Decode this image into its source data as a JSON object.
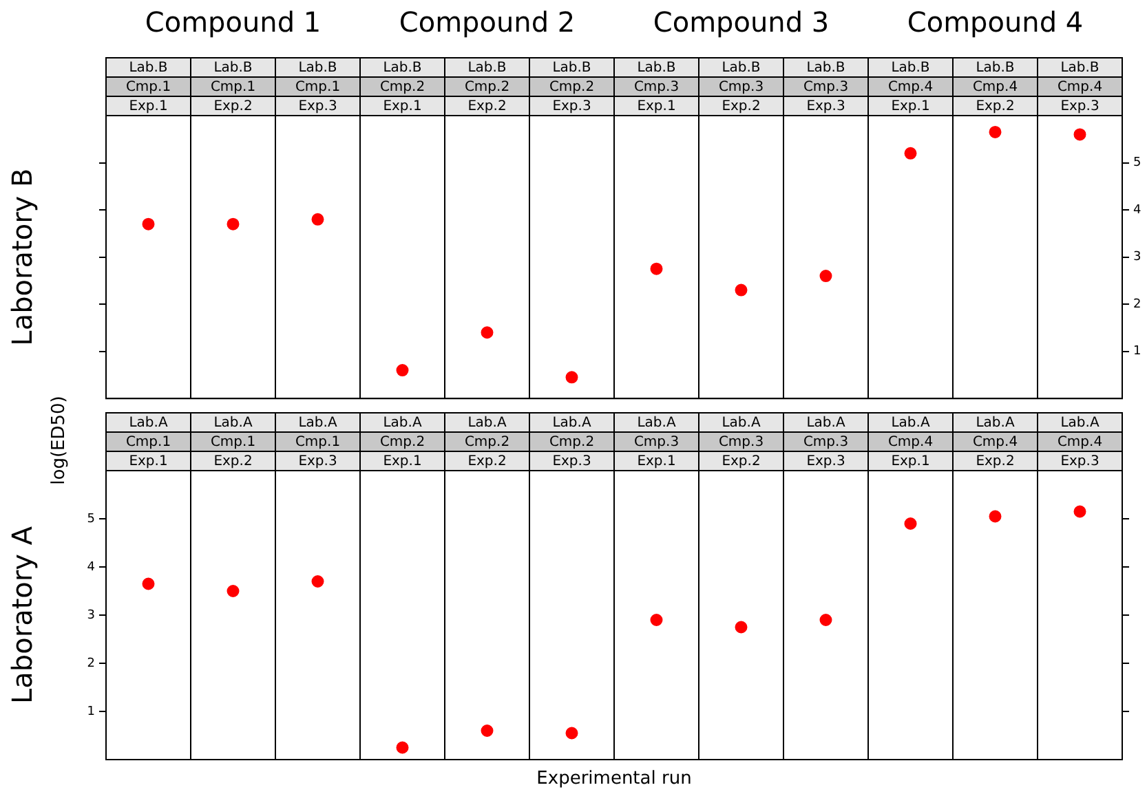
{
  "chart_data": [
    {
      "type": "scatter",
      "ylabel": "Laboratory B",
      "categories": [
        "Exp.1",
        "Exp.2",
        "Exp.3",
        "Exp.1",
        "Exp.2",
        "Exp.3",
        "Exp.1",
        "Exp.2",
        "Exp.3",
        "Exp.1",
        "Exp.2",
        "Exp.3"
      ],
      "annotations": [
        "Compound 1",
        "Compound 2",
        "Compound 3",
        "Compound 4",
        "Lab.B",
        "Lab.B",
        "Lab.B",
        "Lab.B",
        "Lab.B",
        "Lab.B",
        "Lab.B",
        "Lab.B",
        "Lab.B",
        "Lab.B",
        "Lab.B",
        "Lab.B",
        "Cmp.1",
        "Cmp.1",
        "Cmp.1",
        "Cmp.2",
        "Cmp.2",
        "Cmp.2",
        "Cmp.3",
        "Cmp.3",
        "Cmp.3",
        "Cmp.4",
        "Cmp.4",
        "Cmp.4"
      ],
      "series": [
        {
          "color": "#ff0000",
          "axis": "y2",
          "values": [
            3.7,
            3.7,
            3.8,
            0.6,
            1.4,
            0.45,
            2.75,
            2.3,
            2.6,
            5.2,
            5.65,
            5.6
          ]
        }
      ],
      "y2lim": [
        0,
        6
      ],
      "y2ticks": [
        1,
        2,
        3,
        4,
        5
      ],
      "marker": "circle",
      "legend": false
    },
    {
      "type": "scatter",
      "ylabel": "Laboratory A",
      "xlabel": "Experimental run",
      "categories": [
        "Exp.1",
        "Exp.2",
        "Exp.3",
        "Exp.1",
        "Exp.2",
        "Exp.3",
        "Exp.1",
        "Exp.2",
        "Exp.3",
        "Exp.1",
        "Exp.2",
        "Exp.3"
      ],
      "annotations": [
        "log(ED50)",
        "Lab.A",
        "Lab.A",
        "Lab.A",
        "Lab.A",
        "Lab.A",
        "Lab.A",
        "Lab.A",
        "Lab.A",
        "Lab.A",
        "Lab.A",
        "Lab.A",
        "Lab.A",
        "Cmp.1",
        "Cmp.1",
        "Cmp.1",
        "Cmp.2",
        "Cmp.2",
        "Cmp.2",
        "Cmp.3",
        "Cmp.3",
        "Cmp.3",
        "Cmp.4",
        "Cmp.4",
        "Cmp.4"
      ],
      "series": [
        {
          "color": "#ff0000",
          "values": [
            3.65,
            3.5,
            3.7,
            0.25,
            0.6,
            0.55,
            2.9,
            2.75,
            2.9,
            4.9,
            5.05,
            5.15
          ]
        }
      ],
      "ylim": [
        0,
        6
      ],
      "yticks": [
        1,
        2,
        3,
        4,
        5
      ],
      "marker": "circle",
      "legend": false
    }
  ]
}
